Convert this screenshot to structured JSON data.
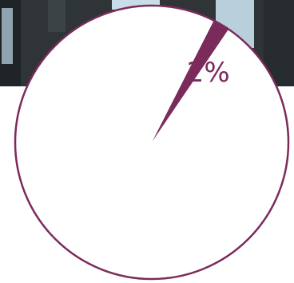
{
  "chart_data": {
    "type": "pie",
    "values": [
      2,
      98
    ],
    "value_labels": [
      "2%",
      null
    ],
    "colors": [
      "#7b2a5c",
      "#ffffff"
    ]
  }
}
